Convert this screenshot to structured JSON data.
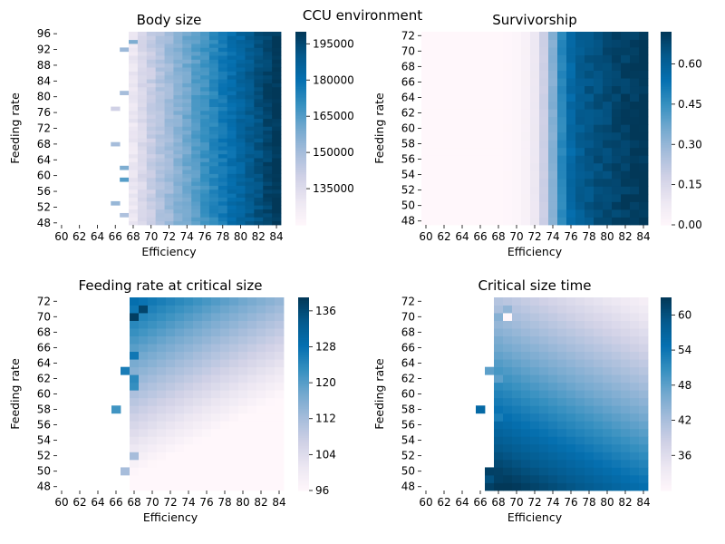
{
  "figure": {
    "suptitle": "CCU environment"
  },
  "colormap": {
    "name": "PuBu",
    "stops": [
      "#fff7fb",
      "#ece7f2",
      "#d0d1e6",
      "#a6bddb",
      "#74a9cf",
      "#3690c0",
      "#0570b0",
      "#045a8d",
      "#023858"
    ]
  },
  "chart_data": [
    {
      "type": "heatmap",
      "title": "Body size",
      "xlabel": "Efficiency",
      "ylabel": "Feeding rate",
      "x_range": [
        60,
        85
      ],
      "x_ticks": [
        "60",
        "62",
        "64",
        "66",
        "68",
        "70",
        "72",
        "74",
        "76",
        "78",
        "80",
        "82",
        "84"
      ],
      "y_range": [
        48,
        97
      ],
      "y_ticks": [
        "48",
        "52",
        "56",
        "60",
        "64",
        "68",
        "72",
        "76",
        "80",
        "84",
        "88",
        "92",
        "96"
      ],
      "colorbar": {
        "vmin": 120000,
        "vmax": 200000,
        "ticks": [
          "135000",
          "150000",
          "165000",
          "180000",
          "195000"
        ],
        "tick_values": [
          135000,
          150000,
          165000,
          180000,
          195000
        ]
      },
      "model": {
        "kind": "body_size",
        "empty_below_x": 68,
        "x_min": 68,
        "x_max": 84,
        "v_min": 130000,
        "v_max": 200000,
        "gamma": 0.85
      },
      "noise_cells": [
        {
          "x": 67,
          "y": 92,
          "value": 152000
        },
        {
          "x": 68,
          "y": 94,
          "value": 158000
        },
        {
          "x": 67,
          "y": 81,
          "value": 150000
        },
        {
          "x": 66,
          "y": 77,
          "value": 140000
        },
        {
          "x": 66,
          "y": 68,
          "value": 150000
        },
        {
          "x": 67,
          "y": 62,
          "value": 158000
        },
        {
          "x": 67,
          "y": 59,
          "value": 165000
        },
        {
          "x": 66,
          "y": 53,
          "value": 153000
        },
        {
          "x": 67,
          "y": 50,
          "value": 148000
        }
      ]
    },
    {
      "type": "heatmap",
      "title": "Survivorship",
      "xlabel": "Efficiency",
      "ylabel": "Feeding rate",
      "x_range": [
        60,
        85
      ],
      "x_ticks": [
        "60",
        "62",
        "64",
        "66",
        "68",
        "70",
        "72",
        "74",
        "76",
        "78",
        "80",
        "82",
        "84"
      ],
      "y_range": [
        48,
        73
      ],
      "y_ticks": [
        "48",
        "50",
        "52",
        "54",
        "56",
        "58",
        "60",
        "62",
        "64",
        "66",
        "68",
        "70",
        "72"
      ],
      "colorbar": {
        "vmin": 0.0,
        "vmax": 0.72,
        "ticks": [
          "0.00",
          "0.15",
          "0.30",
          "0.45",
          "0.60"
        ],
        "tick_values": [
          0.0,
          0.15,
          0.3,
          0.45,
          0.6
        ]
      },
      "model": {
        "kind": "survivorship",
        "midpoint": 73.8,
        "steepness": 1.0,
        "plateau": 0.6,
        "slope_after": 0.012
      }
    },
    {
      "type": "heatmap",
      "title": "Feeding rate at critical size",
      "xlabel": "Efficiency",
      "ylabel": "Feeding rate",
      "x_range": [
        60,
        85
      ],
      "x_ticks": [
        "60",
        "62",
        "64",
        "66",
        "68",
        "70",
        "72",
        "74",
        "76",
        "78",
        "80",
        "82",
        "84"
      ],
      "y_range": [
        48,
        73
      ],
      "y_ticks": [
        "48",
        "50",
        "52",
        "54",
        "56",
        "58",
        "60",
        "62",
        "64",
        "66",
        "68",
        "70",
        "72"
      ],
      "colorbar": {
        "vmin": 96,
        "vmax": 139,
        "ticks": [
          "96",
          "104",
          "112",
          "120",
          "128",
          "136"
        ],
        "tick_values": [
          96,
          104,
          112,
          120,
          128,
          136
        ]
      },
      "model": {
        "kind": "critical_rate",
        "empty_below_x": 68,
        "base": 104,
        "y_coef": 1.45,
        "x_coef": 0.9
      },
      "noise_cells": [
        {
          "x": 68,
          "y": 70,
          "value": 138
        },
        {
          "x": 69,
          "y": 71,
          "value": 137
        },
        {
          "x": 68,
          "y": 65,
          "value": 127
        },
        {
          "x": 67,
          "y": 63,
          "value": 126
        },
        {
          "x": 68,
          "y": 62,
          "value": 124
        },
        {
          "x": 68,
          "y": 61,
          "value": 123
        },
        {
          "x": 66,
          "y": 58,
          "value": 122
        },
        {
          "x": 68,
          "y": 52,
          "value": 112
        },
        {
          "x": 67,
          "y": 50,
          "value": 112
        }
      ]
    },
    {
      "type": "heatmap",
      "title": "Critical size time",
      "xlabel": "Efficiency",
      "ylabel": "Feeding rate",
      "x_range": [
        60,
        85
      ],
      "x_ticks": [
        "60",
        "62",
        "64",
        "66",
        "68",
        "70",
        "72",
        "74",
        "76",
        "78",
        "80",
        "82",
        "84"
      ],
      "y_range": [
        48,
        73
      ],
      "y_ticks": [
        "48",
        "50",
        "52",
        "54",
        "56",
        "58",
        "60",
        "62",
        "64",
        "66",
        "68",
        "70",
        "72"
      ],
      "colorbar": {
        "vmin": 30,
        "vmax": 63,
        "ticks": [
          "36",
          "42",
          "48",
          "54",
          "60"
        ],
        "tick_values": [
          36,
          42,
          48,
          54,
          60
        ]
      },
      "model": {
        "kind": "critical_time",
        "empty_below_x": 68,
        "base": 48,
        "y_coef": -0.95,
        "x_coef": -0.55
      },
      "noise_cells": [
        {
          "x": 68,
          "y": 70,
          "value": 45
        },
        {
          "x": 69,
          "y": 71,
          "value": 44
        },
        {
          "x": 69,
          "y": 70,
          "value": 30
        },
        {
          "x": 68,
          "y": 67,
          "value": 46
        },
        {
          "x": 67,
          "y": 63,
          "value": 48
        },
        {
          "x": 68,
          "y": 62,
          "value": 48
        },
        {
          "x": 66,
          "y": 58,
          "value": 56
        },
        {
          "x": 68,
          "y": 57,
          "value": 53
        },
        {
          "x": 67,
          "y": 50,
          "value": 62
        },
        {
          "x": 67,
          "y": 49,
          "value": 60
        },
        {
          "x": 68,
          "y": 49,
          "value": 62
        },
        {
          "x": 67,
          "y": 48,
          "value": 62
        }
      ]
    }
  ]
}
